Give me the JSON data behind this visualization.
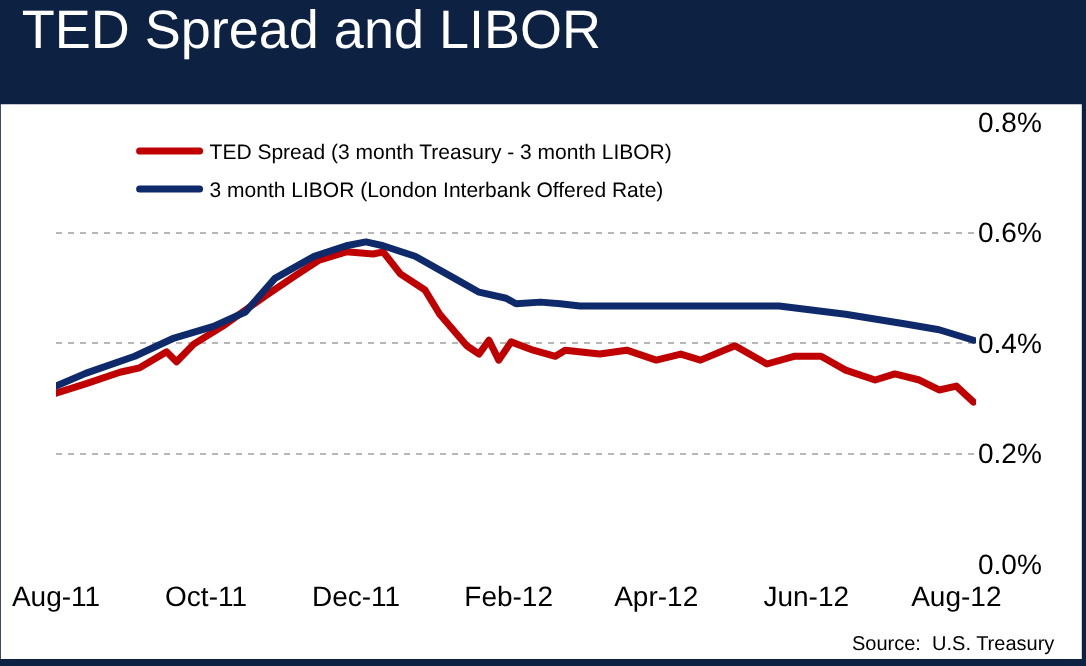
{
  "chart_data": {
    "type": "line",
    "title": "TED Spread and LIBOR",
    "x": [
      "2011-08-01",
      "2011-08-13",
      "2011-08-27",
      "2011-09-04",
      "2011-09-15",
      "2011-09-19",
      "2011-09-26",
      "2011-10-09",
      "2011-10-25",
      "2011-11-06",
      "2011-11-16",
      "2011-11-27",
      "2011-12-08",
      "2011-12-12",
      "2011-12-19",
      "2011-12-29",
      "2012-01-04",
      "2012-01-15",
      "2012-01-20",
      "2012-01-24",
      "2012-01-28",
      "2012-02-02",
      "2012-02-11",
      "2012-02-20",
      "2012-02-24",
      "2012-03-09",
      "2012-03-20",
      "2012-04-01",
      "2012-04-11",
      "2012-04-19",
      "2012-05-03",
      "2012-05-16",
      "2012-05-27",
      "2012-06-07",
      "2012-06-17",
      "2012-06-29",
      "2012-07-07",
      "2012-07-17",
      "2012-07-25",
      "2012-08-01",
      "2012-08-08"
    ],
    "series": [
      {
        "name": "TED Spread (3 month Treasury - 3 month LIBOR)",
        "color": "#c00000",
        "values": [
          0.309,
          0.326,
          0.347,
          0.355,
          0.384,
          0.366,
          0.398,
          0.434,
          0.485,
          0.521,
          0.55,
          0.565,
          0.561,
          0.565,
          0.525,
          0.496,
          0.452,
          0.395,
          0.38,
          0.405,
          0.369,
          0.402,
          0.387,
          0.376,
          0.387,
          0.38,
          0.387,
          0.369,
          0.38,
          0.369,
          0.395,
          0.362,
          0.376,
          0.376,
          0.351,
          0.333,
          0.344,
          0.333,
          0.315,
          0.322,
          0.293
        ]
      },
      {
        "name": "3 month LIBOR (London Interbank Offered Rate)",
        "color": "#0f2a6b",
        "x": [
          "2011-08-01",
          "2011-08-13",
          "2011-09-02",
          "2011-09-18",
          "2011-10-04",
          "2011-10-17",
          "2011-10-29",
          "2011-11-14",
          "2011-11-27",
          "2011-12-05",
          "2011-12-12",
          "2011-12-25",
          "2012-01-10",
          "2012-01-20",
          "2012-01-31",
          "2012-02-04",
          "2012-02-14",
          "2012-02-22",
          "2012-03-01",
          "2012-04-08",
          "2012-05-21",
          "2012-06-17",
          "2012-07-12",
          "2012-07-25",
          "2012-08-08"
        ],
        "values": [
          0.322,
          0.345,
          0.376,
          0.409,
          0.43,
          0.456,
          0.517,
          0.557,
          0.576,
          0.583,
          0.576,
          0.557,
          0.517,
          0.492,
          0.481,
          0.471,
          0.474,
          0.471,
          0.467,
          0.467,
          0.467,
          0.452,
          0.434,
          0.424,
          0.405
        ]
      }
    ],
    "xlim": [
      "2011-08-01",
      "2012-08-09"
    ],
    "xticks": [
      {
        "value": "2011-08-01",
        "label": "Aug-11"
      },
      {
        "value": "2011-10-01",
        "label": "Oct-11"
      },
      {
        "value": "2011-12-01",
        "label": "Dec-11"
      },
      {
        "value": "2012-02-01",
        "label": "Feb-12"
      },
      {
        "value": "2012-04-01",
        "label": "Apr-12"
      },
      {
        "value": "2012-06-01",
        "label": "Jun-12"
      },
      {
        "value": "2012-08-01",
        "label": "Aug-12"
      }
    ],
    "ylim": [
      0,
      0.8
    ],
    "yticks": [
      {
        "value": 0,
        "label": "0.0%"
      },
      {
        "value": 0.2,
        "label": "0.2%"
      },
      {
        "value": 0.4,
        "label": "0.4%"
      },
      {
        "value": 0.6,
        "label": "0.6%"
      },
      {
        "value": 0.8,
        "label": "0.8%"
      }
    ],
    "grid": "y",
    "legend": "top left",
    "marker": "none",
    "line_style": "solid",
    "annotations": [
      "Source:  U.S. Treasury"
    ]
  }
}
